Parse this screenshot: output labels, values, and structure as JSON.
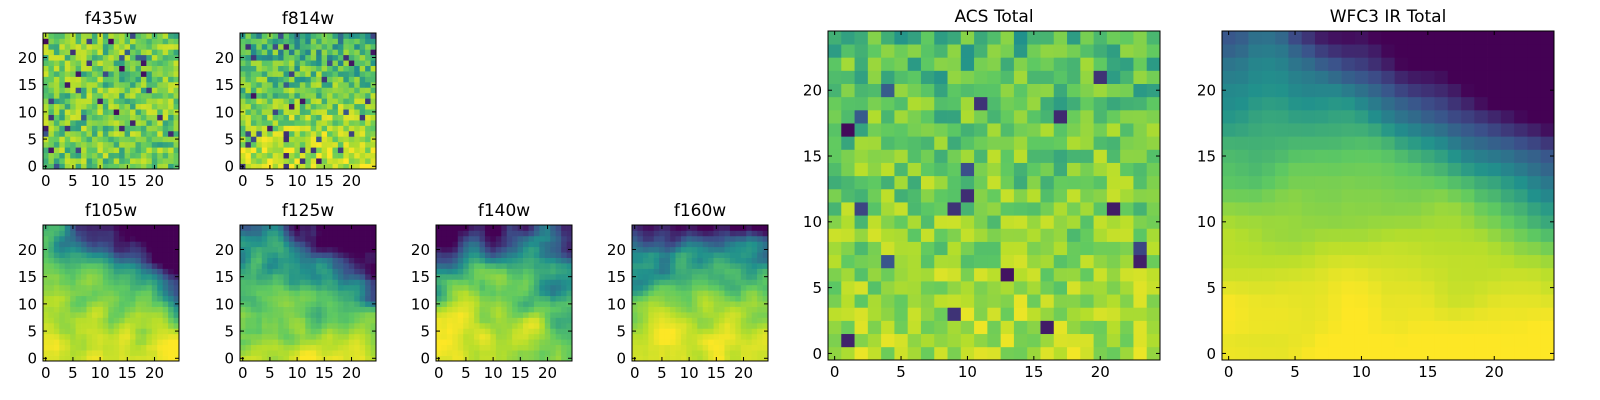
{
  "figure": {
    "colormap": "viridis",
    "colormap_stops": [
      "#440154",
      "#3b528b",
      "#21918c",
      "#5ec962",
      "#b5de2b",
      "#fde725"
    ],
    "value_range": [
      0,
      1
    ],
    "grid": false
  },
  "chart_data": [
    {
      "id": "f435w",
      "type": "heatmap",
      "title": "f435w",
      "xlabel": "",
      "ylabel": "",
      "shape": [
        25,
        25
      ],
      "xlim": [
        -0.5,
        24.5
      ],
      "ylim": [
        -0.5,
        24.5
      ],
      "xticks": [
        "0",
        "5",
        "10",
        "15",
        "20"
      ],
      "yticks": [
        "0",
        "5",
        "10",
        "15",
        "20"
      ],
      "description_of_values": "noisy per-pixel intensity, mostly mid-to-high (green-yellow) with scattered dark pixels",
      "profile": {
        "mean": 0.66,
        "noise": 0.22,
        "smooth": 0,
        "dark_fraction": 0.06,
        "gradient": [
          0,
          0
        ],
        "seed": 11
      }
    },
    {
      "id": "f814w",
      "type": "heatmap",
      "title": "f814w",
      "xlabel": "",
      "ylabel": "",
      "shape": [
        25,
        25
      ],
      "xlim": [
        -0.5,
        24.5
      ],
      "ylim": [
        -0.5,
        24.5
      ],
      "xticks": [
        "0",
        "5",
        "10",
        "15",
        "20"
      ],
      "yticks": [
        "0",
        "5",
        "10",
        "15",
        "20"
      ],
      "description_of_values": "noisy per-pixel intensity, brighter toward the bottom",
      "profile": {
        "mean": 0.68,
        "noise": 0.22,
        "smooth": 0,
        "dark_fraction": 0.05,
        "gradient": [
          0,
          -0.18
        ],
        "seed": 23
      }
    },
    {
      "id": "f105w",
      "type": "heatmap",
      "title": "f105w",
      "xlabel": "",
      "ylabel": "",
      "shape": [
        25,
        25
      ],
      "xlim": [
        -0.5,
        24.5
      ],
      "ylim": [
        -0.5,
        24.5
      ],
      "xticks": [
        "0",
        "5",
        "10",
        "15",
        "20"
      ],
      "yticks": [
        "0",
        "5",
        "10",
        "15",
        "20"
      ],
      "description_of_values": "smoother field, dark patch top-right, bright toward bottom",
      "profile": {
        "mean": 0.64,
        "noise": 0.2,
        "smooth": 2,
        "dark_fraction": 0.0,
        "gradient": [
          0,
          -0.3
        ],
        "dark_corner": "top-right",
        "seed": 37
      }
    },
    {
      "id": "f125w",
      "type": "heatmap",
      "title": "f125w",
      "xlabel": "",
      "ylabel": "",
      "shape": [
        25,
        25
      ],
      "xlim": [
        -0.5,
        24.5
      ],
      "ylim": [
        -0.5,
        24.5
      ],
      "xticks": [
        "0",
        "5",
        "10",
        "15",
        "20"
      ],
      "yticks": [
        "0",
        "5",
        "10",
        "15",
        "20"
      ],
      "description_of_values": "smoother field, darker upper-right and left edge",
      "profile": {
        "mean": 0.58,
        "noise": 0.22,
        "smooth": 2,
        "dark_fraction": 0.0,
        "gradient": [
          0,
          -0.25
        ],
        "dark_corner": "top-right",
        "seed": 41
      }
    },
    {
      "id": "f140w",
      "type": "heatmap",
      "title": "f140w",
      "xlabel": "",
      "ylabel": "",
      "shape": [
        25,
        25
      ],
      "xlim": [
        -0.5,
        24.5
      ],
      "ylim": [
        -0.5,
        24.5
      ],
      "xticks": [
        "0",
        "5",
        "10",
        "15",
        "20"
      ],
      "yticks": [
        "0",
        "5",
        "10",
        "15",
        "20"
      ],
      "description_of_values": "smoother field, blue-teal structures top, yellow lower-left",
      "profile": {
        "mean": 0.62,
        "noise": 0.24,
        "smooth": 2,
        "dark_fraction": 0.0,
        "gradient": [
          -0.1,
          -0.28
        ],
        "dark_corner": "top-left",
        "seed": 53
      }
    },
    {
      "id": "f160w",
      "type": "heatmap",
      "title": "f160w",
      "xlabel": "",
      "ylabel": "",
      "shape": [
        25,
        25
      ],
      "xlim": [
        -0.5,
        24.5
      ],
      "ylim": [
        -0.5,
        24.5
      ],
      "xticks": [
        "0",
        "5",
        "10",
        "15",
        "20"
      ],
      "yticks": [
        "0",
        "5",
        "10",
        "15",
        "20"
      ],
      "description_of_values": "smoother field, dark along top edge, bright lower region",
      "profile": {
        "mean": 0.64,
        "noise": 0.22,
        "smooth": 2,
        "dark_fraction": 0.0,
        "gradient": [
          0,
          -0.35
        ],
        "dark_corner": "top",
        "seed": 67
      }
    },
    {
      "id": "acs_total",
      "type": "heatmap",
      "title": "ACS Total",
      "xlabel": "",
      "ylabel": "",
      "shape": [
        25,
        25
      ],
      "xlim": [
        -0.5,
        24.5
      ],
      "ylim": [
        -0.5,
        24.5
      ],
      "xticks": [
        "0",
        "5",
        "10",
        "15",
        "20"
      ],
      "yticks": [
        "0",
        "5",
        "10",
        "15",
        "20"
      ],
      "description_of_values": "noisy green-yellow field with scattered dark purple pixels, slightly brighter at bottom",
      "profile": {
        "mean": 0.68,
        "noise": 0.18,
        "smooth": 0,
        "dark_fraction": 0.04,
        "gradient": [
          0,
          -0.12
        ],
        "seed": 79
      }
    },
    {
      "id": "wfc3_ir_total",
      "type": "heatmap",
      "title": "WFC3 IR Total",
      "xlabel": "",
      "ylabel": "",
      "shape": [
        25,
        25
      ],
      "xlim": [
        -0.5,
        24.5
      ],
      "ylim": [
        -0.5,
        24.5
      ],
      "xticks": [
        "0",
        "5",
        "10",
        "15",
        "20"
      ],
      "yticks": [
        "0",
        "5",
        "10",
        "15",
        "20"
      ],
      "description_of_values": "smooth field, dark purple/blue in top-right, bright yellow at bottom and center-left",
      "profile": {
        "mean": 0.66,
        "noise": 0.12,
        "smooth": 2,
        "dark_fraction": 0.0,
        "gradient": [
          0,
          -0.4
        ],
        "dark_corner": "top-right",
        "seed": 97
      }
    }
  ]
}
